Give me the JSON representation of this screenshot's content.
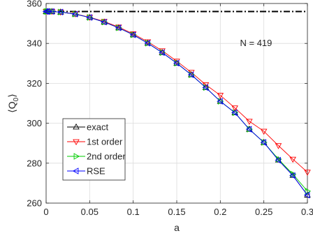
{
  "chart_data": {
    "type": "line",
    "xlabel": "a",
    "ylabel_main": "⟨Q",
    "ylabel_sub": "0",
    "ylabel_close": "⟩",
    "xlim": [
      0,
      0.3
    ],
    "ylim": [
      260,
      360
    ],
    "xticks": [
      0,
      0.05,
      0.1,
      0.15,
      0.2,
      0.25,
      0.3
    ],
    "xtick_labels": [
      "0",
      "0.05",
      "0.1",
      "0.15",
      "0.2",
      "0.25",
      "0.3"
    ],
    "yticks": [
      260,
      280,
      300,
      320,
      340,
      360
    ],
    "ytick_labels": [
      "260",
      "280",
      "300",
      "320",
      "340",
      "360"
    ],
    "grid": true,
    "annotation": "N = 419",
    "reference_line": {
      "y": 356,
      "style": "dash-dot",
      "color": "#000000"
    },
    "legend_position": "lower-left",
    "x": [
      0,
      0.0017,
      0.0067,
      0.0167,
      0.0333,
      0.05,
      0.0667,
      0.0833,
      0.1,
      0.1167,
      0.1333,
      0.15,
      0.1667,
      0.1833,
      0.2,
      0.2167,
      0.2333,
      0.25,
      0.2667,
      0.2833,
      0.3
    ],
    "series": [
      {
        "name": "exact",
        "color": "#000000",
        "marker": "triangle-up",
        "values": [
          356,
          356,
          356,
          355.7,
          354.7,
          353,
          350.7,
          347.8,
          344.3,
          340.1,
          335.4,
          330.1,
          324.3,
          317.9,
          311,
          305.3,
          297,
          290.4,
          281.6,
          273.9,
          264
        ]
      },
      {
        "name": "1st order",
        "color": "#ff0000",
        "marker": "triangle-down",
        "values": [
          356,
          356,
          356,
          355.7,
          354.8,
          353.1,
          351,
          348.2,
          344.8,
          340.8,
          336.3,
          331.1,
          325.5,
          319.3,
          314,
          307.7,
          301,
          296,
          288.8,
          282,
          275.5
        ]
      },
      {
        "name": "2nd order",
        "color": "#00cc00",
        "marker": "triangle-right",
        "values": [
          356,
          356,
          356,
          355.7,
          354.7,
          353,
          350.7,
          347.8,
          344.3,
          340.1,
          335.4,
          330.1,
          324.3,
          317.9,
          311,
          305.3,
          297,
          290.4,
          282,
          274.5,
          266
        ]
      },
      {
        "name": "RSE",
        "color": "#0000ff",
        "marker": "triangle-left",
        "values": [
          356,
          356,
          356,
          355.7,
          354.7,
          353,
          350.7,
          347.8,
          344.3,
          340.1,
          335.4,
          330.1,
          324.3,
          317.9,
          311,
          305.3,
          297,
          290.4,
          281.5,
          273.8,
          264
        ]
      }
    ]
  }
}
